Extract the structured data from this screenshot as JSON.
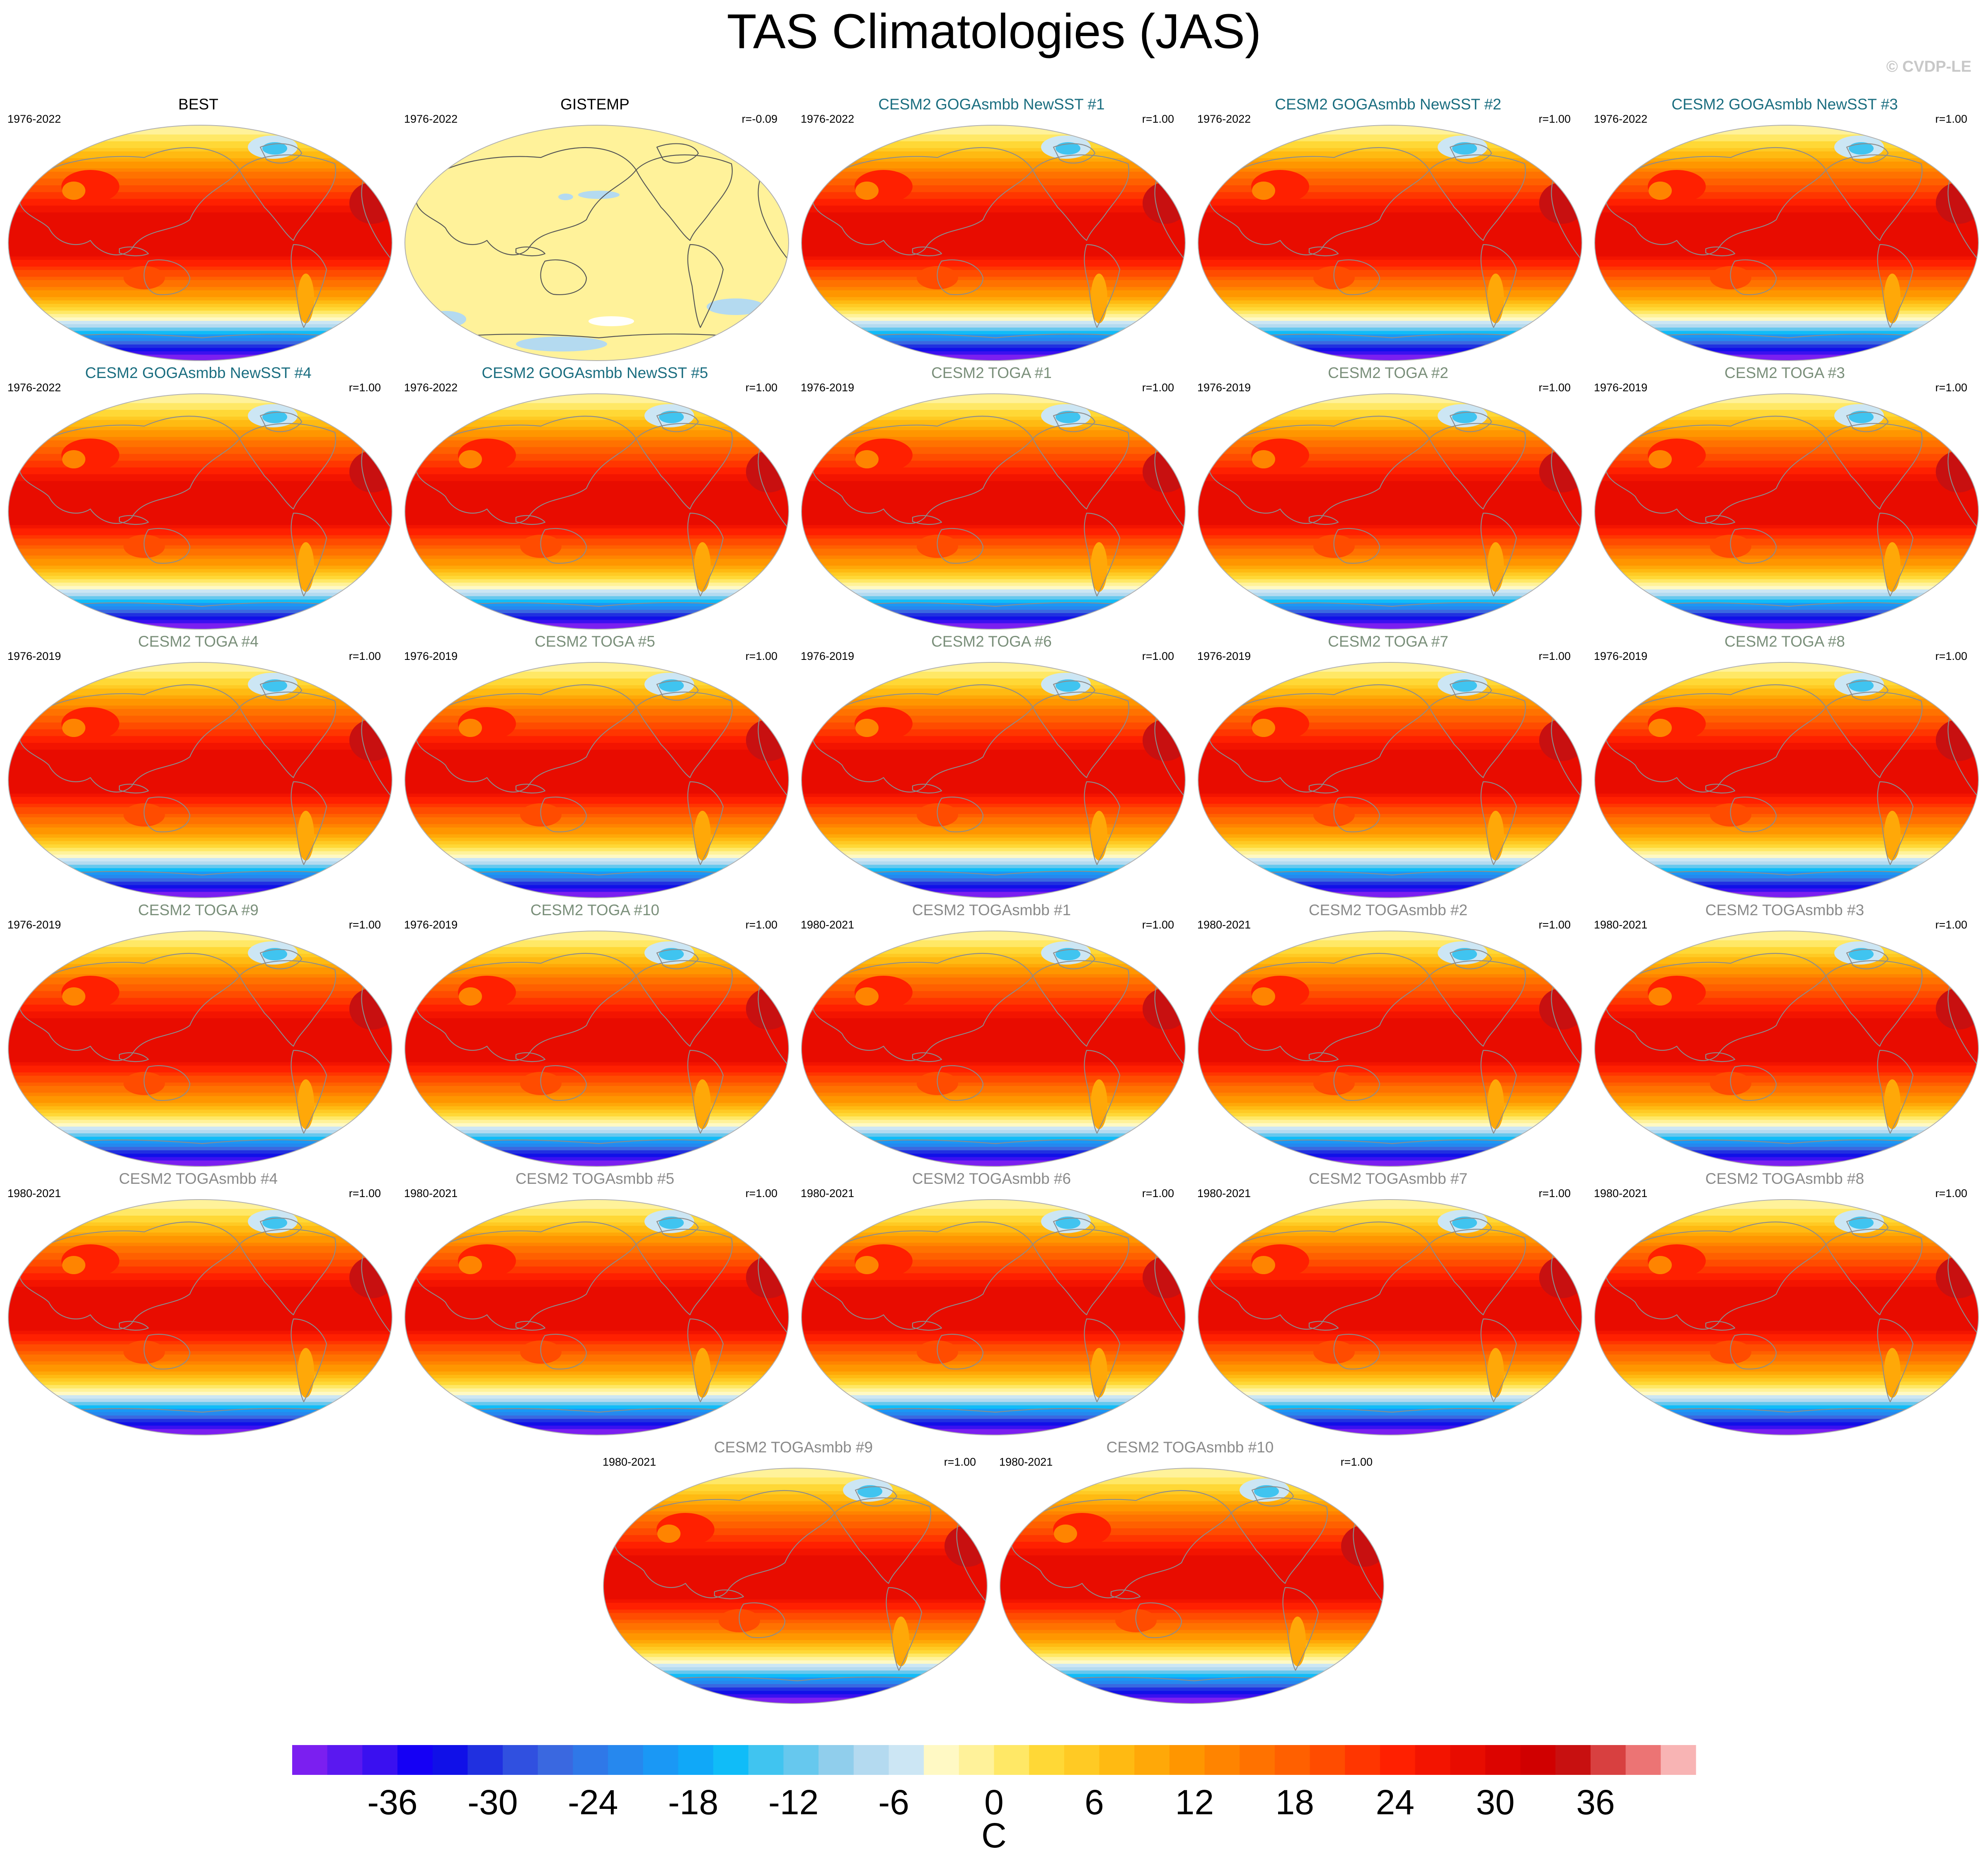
{
  "title": "TAS Climatologies (JAS)",
  "credit": "© CVDP-LE",
  "chart_data": {
    "type": "heatmap",
    "projection": "robinson (global, pacific-centered)",
    "variable": "near-surface air temperature climatology",
    "season": "JAS",
    "panels": [
      {
        "title": "BEST",
        "years": "1976-2022",
        "r": "",
        "title_color": "#000000",
        "kind": "obs"
      },
      {
        "title": "GISTEMP",
        "years": "1976-2022",
        "r": "r=-0.09",
        "title_color": "#000000",
        "kind": "anom"
      },
      {
        "title": "CESM2 GOGAsmbb NewSST #1",
        "years": "1976-2022",
        "r": "r=1.00",
        "title_color": "#1b6e80",
        "kind": "model"
      },
      {
        "title": "CESM2 GOGAsmbb NewSST #2",
        "years": "1976-2022",
        "r": "r=1.00",
        "title_color": "#1b6e80",
        "kind": "model"
      },
      {
        "title": "CESM2 GOGAsmbb NewSST #3",
        "years": "1976-2022",
        "r": "r=1.00",
        "title_color": "#1b6e80",
        "kind": "model"
      },
      {
        "title": "CESM2 GOGAsmbb NewSST #4",
        "years": "1976-2022",
        "r": "r=1.00",
        "title_color": "#1b6e80",
        "kind": "model"
      },
      {
        "title": "CESM2 GOGAsmbb NewSST #5",
        "years": "1976-2022",
        "r": "r=1.00",
        "title_color": "#1b6e80",
        "kind": "model"
      },
      {
        "title": "CESM2 TOGA #1",
        "years": "1976-2019",
        "r": "r=1.00",
        "title_color": "#7a8f7a",
        "kind": "model"
      },
      {
        "title": "CESM2 TOGA #2",
        "years": "1976-2019",
        "r": "r=1.00",
        "title_color": "#7a8f7a",
        "kind": "model"
      },
      {
        "title": "CESM2 TOGA #3",
        "years": "1976-2019",
        "r": "r=1.00",
        "title_color": "#7a8f7a",
        "kind": "model"
      },
      {
        "title": "CESM2 TOGA #4",
        "years": "1976-2019",
        "r": "r=1.00",
        "title_color": "#7a8f7a",
        "kind": "model"
      },
      {
        "title": "CESM2 TOGA #5",
        "years": "1976-2019",
        "r": "r=1.00",
        "title_color": "#7a8f7a",
        "kind": "model"
      },
      {
        "title": "CESM2 TOGA #6",
        "years": "1976-2019",
        "r": "r=1.00",
        "title_color": "#7a8f7a",
        "kind": "model"
      },
      {
        "title": "CESM2 TOGA #7",
        "years": "1976-2019",
        "r": "r=1.00",
        "title_color": "#7a8f7a",
        "kind": "model"
      },
      {
        "title": "CESM2 TOGA #8",
        "years": "1976-2019",
        "r": "r=1.00",
        "title_color": "#7a8f7a",
        "kind": "model"
      },
      {
        "title": "CESM2 TOGA #9",
        "years": "1976-2019",
        "r": "r=1.00",
        "title_color": "#7a8f7a",
        "kind": "model"
      },
      {
        "title": "CESM2 TOGA #10",
        "years": "1976-2019",
        "r": "r=1.00",
        "title_color": "#7a8f7a",
        "kind": "model"
      },
      {
        "title": "CESM2 TOGAsmbb #1",
        "years": "1980-2021",
        "r": "r=1.00",
        "title_color": "#8a8a8a",
        "kind": "model"
      },
      {
        "title": "CESM2 TOGAsmbb #2",
        "years": "1980-2021",
        "r": "r=1.00",
        "title_color": "#8a8a8a",
        "kind": "model"
      },
      {
        "title": "CESM2 TOGAsmbb #3",
        "years": "1980-2021",
        "r": "r=1.00",
        "title_color": "#8a8a8a",
        "kind": "model"
      },
      {
        "title": "CESM2 TOGAsmbb #4",
        "years": "1980-2021",
        "r": "r=1.00",
        "title_color": "#8a8a8a",
        "kind": "model"
      },
      {
        "title": "CESM2 TOGAsmbb #5",
        "years": "1980-2021",
        "r": "r=1.00",
        "title_color": "#8a8a8a",
        "kind": "model"
      },
      {
        "title": "CESM2 TOGAsmbb #6",
        "years": "1980-2021",
        "r": "r=1.00",
        "title_color": "#8a8a8a",
        "kind": "model"
      },
      {
        "title": "CESM2 TOGAsmbb #7",
        "years": "1980-2021",
        "r": "r=1.00",
        "title_color": "#8a8a8a",
        "kind": "model"
      },
      {
        "title": "CESM2 TOGAsmbb #8",
        "years": "1980-2021",
        "r": "r=1.00",
        "title_color": "#8a8a8a",
        "kind": "model"
      },
      {
        "title": "CESM2 TOGAsmbb #9",
        "years": "1980-2021",
        "r": "r=1.00",
        "title_color": "#8a8a8a",
        "kind": "model"
      },
      {
        "title": "CESM2 TOGAsmbb #10",
        "years": "1980-2021",
        "r": "r=1.00",
        "title_color": "#8a8a8a",
        "kind": "model"
      }
    ],
    "colorbar": {
      "label": "C",
      "range": [
        -42,
        42
      ],
      "interval": 2,
      "tick_labels": [
        "-36",
        "-30",
        "-24",
        "-18",
        "-12",
        "-6",
        "0",
        "6",
        "12",
        "18",
        "24",
        "30",
        "36"
      ],
      "tick_values": [
        -36,
        -30,
        -24,
        -18,
        -12,
        -6,
        0,
        6,
        12,
        18,
        24,
        30,
        36
      ],
      "colors": [
        "#7b1ff0",
        "#5a18f0",
        "#3a10f0",
        "#1500f5",
        "#1010e8",
        "#2030e0",
        "#3050e0",
        "#3a68e0",
        "#2f78e8",
        "#2688ee",
        "#1a98f5",
        "#10a8f8",
        "#10bcf8",
        "#40c4f0",
        "#66c8ee",
        "#90ceec",
        "#b4daf0",
        "#cce6f4",
        "#fff9c4",
        "#fff29a",
        "#ffe866",
        "#ffd836",
        "#ffca24",
        "#ffba12",
        "#ffa808",
        "#ff9600",
        "#ff8400",
        "#ff7200",
        "#ff6000",
        "#ff4c00",
        "#ff3600",
        "#ff2000",
        "#f31400",
        "#e80c00",
        "#dc0400",
        "#d00000",
        "#c81010",
        "#d84040",
        "#ec7474",
        "#f8b4b4"
      ]
    }
  }
}
